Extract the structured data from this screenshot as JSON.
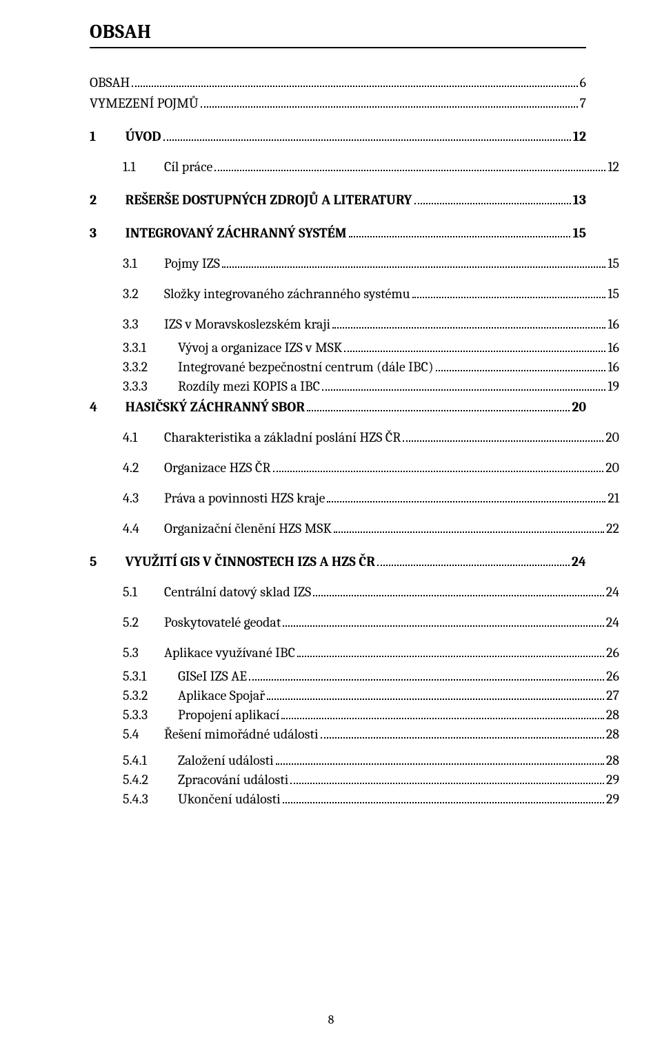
{
  "heading": "OBSAH",
  "pageNumber": "8",
  "toc": [
    {
      "lvl": 0,
      "bold": false,
      "num": "",
      "label": "OBSAH",
      "page": "6",
      "spaceBefore": 0
    },
    {
      "lvl": 0,
      "bold": false,
      "num": "",
      "label": "VYMEZENÍ POJMŮ",
      "page": "7",
      "spaceBefore": 0
    },
    {
      "lvl": 0,
      "bold": true,
      "num": "1",
      "label": "ÚVOD",
      "page": "12",
      "spaceBefore": 1
    },
    {
      "lvl": 1,
      "bold": false,
      "num": "1.1",
      "label": "Cíl práce",
      "page": "12"
    },
    {
      "lvl": 0,
      "bold": true,
      "num": "2",
      "label": "REŠERŠE DOSTUPNÝCH ZDROJŮ A LITERATURY",
      "page": "13",
      "spaceBefore": 1
    },
    {
      "lvl": 0,
      "bold": true,
      "num": "3",
      "label": "INTEGROVANÝ ZÁCHRANNÝ SYSTÉM",
      "page": "15",
      "spaceBefore": 1
    },
    {
      "lvl": 1,
      "bold": false,
      "num": "3.1",
      "label": "Pojmy IZS",
      "page": "15"
    },
    {
      "lvl": 1,
      "bold": false,
      "num": "3.2",
      "label": "Složky integrovaného záchranného systému",
      "page": "15"
    },
    {
      "lvl": 1,
      "bold": false,
      "num": "3.3",
      "label": "IZS v Moravskoslezském kraji",
      "page": "16"
    },
    {
      "lvl": 2,
      "bold": false,
      "num": "3.3.1",
      "label": "Vývoj a organizace IZS v MSK",
      "page": "16"
    },
    {
      "lvl": 2,
      "bold": false,
      "num": "3.3.2",
      "label": "Integrované bezpečnostní centrum (dále IBC)",
      "page": "16"
    },
    {
      "lvl": 2,
      "bold": false,
      "num": "3.3.3",
      "label": "Rozdíly mezi KOPIS a IBC",
      "page": "19"
    },
    {
      "lvl": 0,
      "bold": true,
      "num": "4",
      "label": "HASIČSKÝ ZÁCHRANNÝ SBOR",
      "page": "20",
      "spaceBefore": 0
    },
    {
      "lvl": 1,
      "bold": false,
      "num": "4.1",
      "label": "Charakteristika a základní poslání HZS ČR",
      "page": "20"
    },
    {
      "lvl": 1,
      "bold": false,
      "num": "4.2",
      "label": "Organizace HZS ČR",
      "page": "20"
    },
    {
      "lvl": 1,
      "bold": false,
      "num": "4.3",
      "label": "Práva a povinnosti HZS kraje",
      "page": "21"
    },
    {
      "lvl": 1,
      "bold": false,
      "num": "4.4",
      "label": "Organizační členění HZS MSK",
      "page": "22"
    },
    {
      "lvl": 0,
      "bold": true,
      "num": "5",
      "label": "VYUŽITÍ GIS V ČINNOSTECH IZS A HZS ČR",
      "page": "24",
      "spaceBefore": 1
    },
    {
      "lvl": 1,
      "bold": false,
      "num": "5.1",
      "label": "Centrální datový sklad IZS",
      "page": "24"
    },
    {
      "lvl": 1,
      "bold": false,
      "num": "5.2",
      "label": "Poskytovatelé geodat",
      "page": "24"
    },
    {
      "lvl": 1,
      "bold": false,
      "num": "5.3",
      "label": "Aplikace využívané IBC",
      "page": "26"
    },
    {
      "lvl": 2,
      "bold": false,
      "num": "5.3.1",
      "label": "GISeI IZS AE",
      "page": "26"
    },
    {
      "lvl": 2,
      "bold": false,
      "num": "5.3.2",
      "label": "Aplikace Spojař",
      "page": "27"
    },
    {
      "lvl": 2,
      "bold": false,
      "num": "5.3.3",
      "label": "Propojení aplikací",
      "page": "28"
    },
    {
      "lvl": 1,
      "bold": false,
      "num": "5.4",
      "label": "Řešení mimořádné události",
      "page": "28",
      "tight": true
    },
    {
      "lvl": 2,
      "bold": false,
      "num": "5.4.1",
      "label": "Založení události",
      "page": "28",
      "padTop": true
    },
    {
      "lvl": 2,
      "bold": false,
      "num": "5.4.2",
      "label": "Zpracování události",
      "page": "29"
    },
    {
      "lvl": 2,
      "bold": false,
      "num": "5.4.3",
      "label": "Ukončení události",
      "page": "29"
    }
  ]
}
